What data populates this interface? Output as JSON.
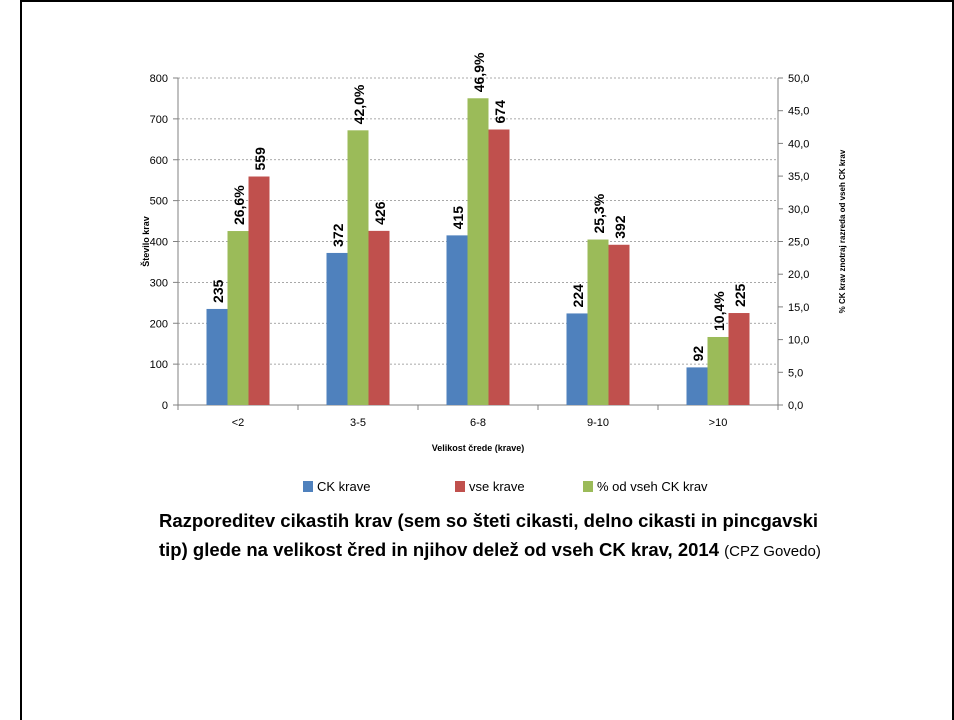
{
  "chart_data": {
    "type": "bar",
    "categories": [
      "<2",
      "3-5",
      "6-8",
      "9-10",
      ">10"
    ],
    "series": [
      {
        "name": "CK krave",
        "axis": "left",
        "color": "#4F81BD",
        "values": [
          235,
          372,
          415,
          224,
          92
        ],
        "labels": [
          "235",
          "372",
          "415",
          "224",
          "92"
        ]
      },
      {
        "name": "% od vseh CK krav",
        "axis": "right",
        "color": "#9BBB59",
        "values": [
          26.6,
          42.0,
          46.9,
          25.3,
          10.4
        ],
        "labels": [
          "26,6%",
          "42,0%",
          "46,9%",
          "25,3%",
          "10,4%"
        ]
      },
      {
        "name": "vse krave",
        "axis": "left",
        "color": "#C0504D",
        "values": [
          559,
          426,
          674,
          392,
          225
        ],
        "labels": [
          "559",
          "426",
          "674",
          "392",
          "225"
        ]
      }
    ],
    "legend_order": [
      "CK krave",
      "vse krave",
      "% od vseh CK krav"
    ],
    "legend_position": "bottom",
    "xlabel": "Velikost črede (krave)",
    "ylabel": "Število krav",
    "y2label": "% CK krav znotraj razreda od vseh CK krav",
    "ylim": [
      0,
      800
    ],
    "y2lim": [
      0,
      50
    ],
    "yticks": [
      "0",
      "100",
      "200",
      "300",
      "400",
      "500",
      "600",
      "700",
      "800"
    ],
    "y2ticks": [
      "0,0",
      "5,0",
      "10,0",
      "15,0",
      "20,0",
      "25,0",
      "30,0",
      "35,0",
      "40,0",
      "45,0",
      "50,0"
    ],
    "grid": "horizontal dashed"
  },
  "caption": {
    "bold_part": "Razporeditev cikastih krav (sem so šteti cikasti, delno cikasti in pincgavski tip) glede na velikost čred in njihov delež od vseh CK krav, 2014",
    "source": "(CPZ Govedo)"
  }
}
